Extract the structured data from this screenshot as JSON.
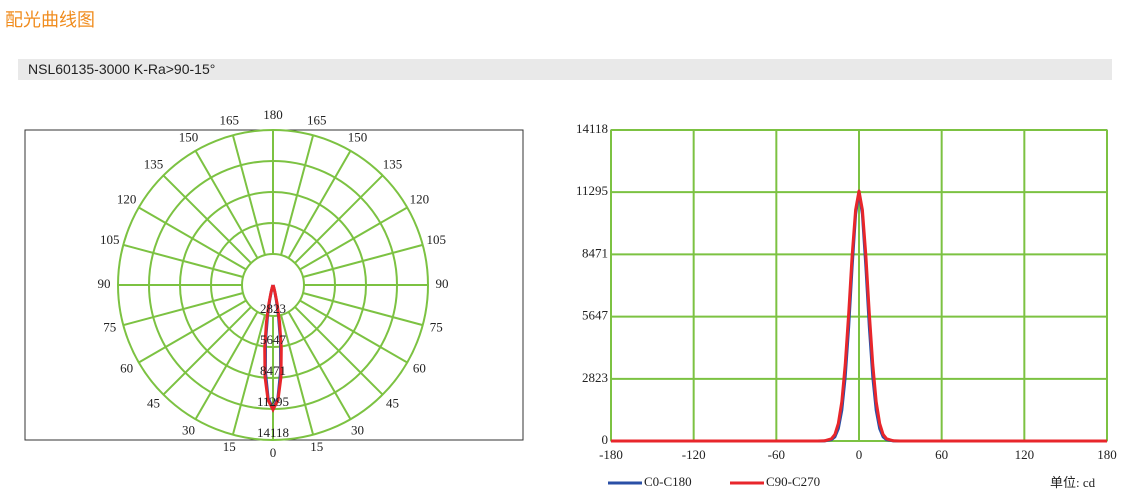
{
  "header": {
    "title": "配光曲线图",
    "product": "NSL60135-3000 K-Ra>90-15°"
  },
  "unit_label": "单位: cd",
  "chart_data": [
    {
      "type": "polar",
      "angle_ticks": [
        0,
        15,
        30,
        45,
        60,
        75,
        90,
        105,
        120,
        135,
        150,
        165,
        180
      ],
      "rlim": [
        0,
        14118
      ],
      "rticks": [
        2823,
        5647,
        8471,
        11295,
        14118
      ],
      "grid_color": "#7cc242",
      "x": [
        -180,
        -90,
        -40,
        -30,
        -25,
        -20,
        -17.5,
        -15,
        -12.5,
        -10,
        -7.5,
        -5,
        -2.5,
        0,
        2.5,
        5,
        7.5,
        10,
        12.5,
        15,
        17.5,
        20,
        25,
        30,
        40,
        90,
        180
      ],
      "series": [
        {
          "color": "#2a4fa6",
          "values": [
            0,
            0,
            0,
            0,
            5,
            60,
            190,
            560,
            1400,
            2900,
            5200,
            7900,
            10300,
            11295,
            10300,
            7900,
            5200,
            2900,
            1400,
            560,
            190,
            60,
            5,
            0,
            0,
            0,
            0
          ]
        },
        {
          "color": "#e8262b",
          "values": [
            0,
            0,
            0,
            0,
            10,
            100,
            300,
            790,
            1780,
            3460,
            5800,
            8400,
            10490,
            11350,
            10490,
            8400,
            5800,
            3460,
            1780,
            790,
            300,
            100,
            10,
            0,
            0,
            0,
            0
          ]
        }
      ]
    },
    {
      "type": "line",
      "xlim": [
        -180,
        180
      ],
      "xticks": [
        -180,
        -120,
        -60,
        0,
        60,
        120,
        180
      ],
      "ylim": [
        0,
        14118
      ],
      "yticks": [
        0,
        2823,
        5647,
        8471,
        11295,
        14118
      ],
      "grid": true,
      "grid_color": "#7cc242",
      "x": [
        -180,
        -90,
        -40,
        -30,
        -25,
        -20,
        -17.5,
        -15,
        -12.5,
        -10,
        -7.5,
        -5,
        -2.5,
        0,
        2.5,
        5,
        7.5,
        10,
        12.5,
        15,
        17.5,
        20,
        25,
        30,
        40,
        90,
        180
      ],
      "series": [
        {
          "name": "C0-C180",
          "color": "#2a4fa6",
          "values": [
            0,
            0,
            0,
            0,
            5,
            60,
            190,
            560,
            1400,
            2900,
            5200,
            7900,
            10300,
            11295,
            10300,
            7900,
            5200,
            2900,
            1400,
            560,
            190,
            60,
            5,
            0,
            0,
            0,
            0
          ]
        },
        {
          "name": "C90-C270",
          "color": "#e8262b",
          "values": [
            0,
            0,
            0,
            0,
            10,
            100,
            300,
            790,
            1780,
            3460,
            5800,
            8400,
            10490,
            11350,
            10490,
            8400,
            5800,
            3460,
            1780,
            790,
            300,
            100,
            10,
            0,
            0,
            0,
            0
          ]
        }
      ]
    }
  ]
}
